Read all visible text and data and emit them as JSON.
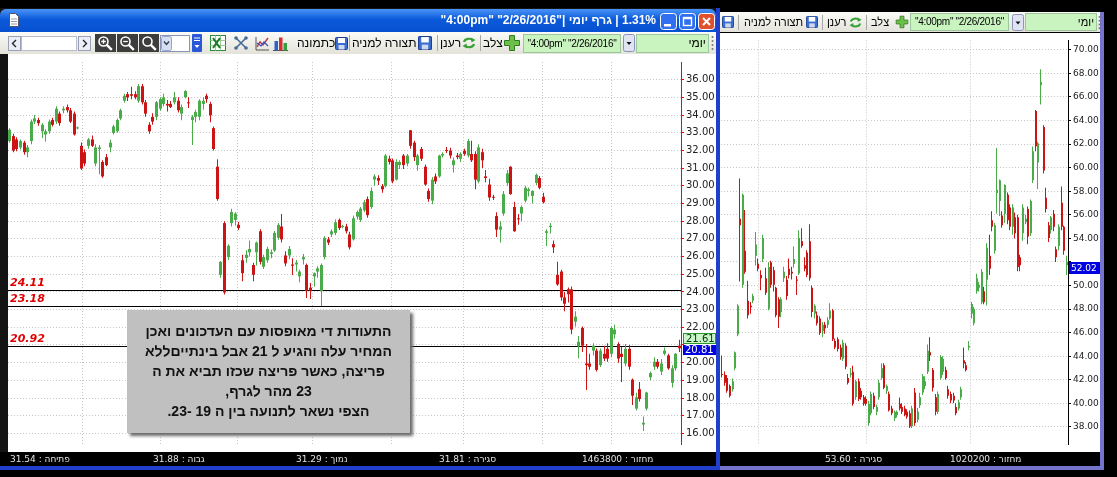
{
  "chart_data": [
    {
      "type": "candlestick",
      "title": "\"4:00pm\" \"2/26/2016\"| גרף יומי | 1.31%",
      "categories": [
        null,
        null,
        null,
        null,
        null,
        null,
        null,
        null,
        null,
        null,
        null,
        null,
        null,
        null,
        null,
        null,
        null,
        null,
        null,
        null,
        null,
        null,
        null,
        null,
        null,
        null,
        null,
        null,
        null,
        null,
        null,
        null,
        null,
        null,
        null,
        null,
        null,
        null,
        null,
        null,
        null,
        null,
        null,
        null,
        null,
        null,
        null,
        null,
        null,
        null,
        null,
        null,
        null,
        null,
        null,
        null,
        null,
        null,
        null,
        null,
        null,
        null,
        null,
        null,
        null,
        null,
        null,
        null,
        null,
        null,
        null,
        null,
        null,
        null,
        null,
        null,
        null,
        null,
        null,
        null,
        null,
        null,
        null,
        null,
        null,
        null,
        null,
        null,
        null,
        null,
        null,
        null,
        null,
        null,
        null,
        null,
        null,
        null,
        null,
        null,
        null,
        null,
        null,
        null,
        null,
        null,
        null,
        null,
        null,
        null,
        null,
        null,
        null,
        null,
        null,
        null,
        null,
        null,
        null,
        null,
        null,
        null,
        null,
        null,
        null,
        null,
        null,
        null,
        null,
        null,
        null,
        null,
        null,
        null,
        null,
        null,
        null,
        null,
        null,
        null,
        null,
        null,
        null,
        null,
        null,
        null,
        null,
        null,
        null,
        null,
        null,
        null,
        null,
        null,
        null,
        null,
        null,
        null,
        null,
        null,
        null,
        null,
        null,
        null,
        null,
        null,
        null,
        null,
        null,
        null,
        null,
        null,
        null,
        null,
        null,
        null,
        null,
        null,
        null,
        null,
        null,
        null,
        null,
        null,
        null,
        null,
        null,
        null
      ],
      "ohlc": [
        [
          32.53,
          33.26,
          32.44,
          33.17
        ],
        [
          32.81,
          32.95,
          31.9,
          31.99
        ],
        [
          32.62,
          32.75,
          31.95,
          32.08
        ],
        [
          32.17,
          32.62,
          32.05,
          32.53
        ],
        [
          32.44,
          32.55,
          31.75,
          31.9
        ],
        [
          31.9,
          32.3,
          31.62,
          32.17
        ],
        [
          32.53,
          33.75,
          32.35,
          33.63
        ],
        [
          33.63,
          34.0,
          33.5,
          33.81
        ],
        [
          33.72,
          33.85,
          33.4,
          33.54
        ],
        [
          33.08,
          33.55,
          32.7,
          33.45
        ],
        [
          32.9,
          33.2,
          32.5,
          33.08
        ],
        [
          33.08,
          33.75,
          32.95,
          33.63
        ],
        [
          33.72,
          33.85,
          33.35,
          33.45
        ],
        [
          33.63,
          34.5,
          33.5,
          34.36
        ],
        [
          34.08,
          34.2,
          33.4,
          33.54
        ],
        [
          34.27,
          34.5,
          34.1,
          34.36
        ],
        [
          34.45,
          34.6,
          34.15,
          34.27
        ],
        [
          34.27,
          34.4,
          33.55,
          33.63
        ],
        [
          34.08,
          34.2,
          32.85,
          32.9
        ],
        [
          33.26,
          33.35,
          33.2,
          33.3
        ],
        [
          32.26,
          32.45,
          30.9,
          30.98
        ],
        [
          31.9,
          32.05,
          31.1,
          31.26
        ],
        [
          32.26,
          32.7,
          32.1,
          32.62
        ],
        [
          32.62,
          32.85,
          32.2,
          32.26
        ],
        [
          31.26,
          32.35,
          31.1,
          32.17
        ],
        [
          32.08,
          32.3,
          30.65,
          32.17
        ],
        [
          31.35,
          31.45,
          30.45,
          30.53
        ],
        [
          31.62,
          31.8,
          31.1,
          31.17
        ],
        [
          32.17,
          32.6,
          31.9,
          32.44
        ],
        [
          32.99,
          33.45,
          32.9,
          33.35
        ],
        [
          33.08,
          33.8,
          33.0,
          33.72
        ],
        [
          33.81,
          34.35,
          33.7,
          34.27
        ],
        [
          34.81,
          35.2,
          34.7,
          35.09
        ],
        [
          35.18,
          35.3,
          34.8,
          35.0
        ],
        [
          35.18,
          35.6,
          34.9,
          35.09
        ],
        [
          35.18,
          35.35,
          34.9,
          35.0
        ],
        [
          34.81,
          35.75,
          34.7,
          35.63
        ],
        [
          35.63,
          35.75,
          34.6,
          34.72
        ],
        [
          34.72,
          34.85,
          33.9,
          34.08
        ],
        [
          33.45,
          33.6,
          32.95,
          33.08
        ],
        [
          33.9,
          34.1,
          33.45,
          33.63
        ],
        [
          33.9,
          34.8,
          33.7,
          34.72
        ],
        [
          34.36,
          35.0,
          34.25,
          34.9
        ],
        [
          34.63,
          35.2,
          34.5,
          35.0
        ],
        [
          34.63,
          34.85,
          34.2,
          34.54
        ],
        [
          34.63,
          34.8,
          34.4,
          34.45
        ],
        [
          34.72,
          35.3,
          34.6,
          35.0
        ],
        [
          34.81,
          35.0,
          34.15,
          34.27
        ],
        [
          34.08,
          34.6,
          33.7,
          34.45
        ],
        [
          35.0,
          35.4,
          34.95,
          35.36
        ],
        [
          34.72,
          35.0,
          34.4,
          34.68
        ],
        [
          33.72,
          34.0,
          32.3,
          33.9
        ],
        [
          33.9,
          34.3,
          33.6,
          34.17
        ],
        [
          33.9,
          34.9,
          33.7,
          34.81
        ],
        [
          34.63,
          35.0,
          34.3,
          34.81
        ],
        [
          35.09,
          35.2,
          34.7,
          34.9
        ],
        [
          34.63,
          34.75,
          33.6,
          33.99
        ],
        [
          33.26,
          33.35,
          32.0,
          32.08
        ],
        [
          31.08,
          31.5,
          29.15,
          29.25
        ],
        [
          24.97,
          25.75,
          24.8,
          25.7
        ],
        [
          27.89,
          28.0,
          23.85,
          23.97
        ],
        [
          25.97,
          26.7,
          25.8,
          26.61
        ],
        [
          27.89,
          28.7,
          27.7,
          28.52
        ],
        [
          28.07,
          28.5,
          27.75,
          28.43
        ],
        [
          27.79,
          27.95,
          27.5,
          27.61
        ],
        [
          25.79,
          26.1,
          24.6,
          25.06
        ],
        [
          25.92,
          26.35,
          25.65,
          26.1
        ],
        [
          26.24,
          26.9,
          26.0,
          26.43
        ],
        [
          25.52,
          25.65,
          24.6,
          24.97
        ],
        [
          26.24,
          26.85,
          25.5,
          26.79
        ],
        [
          27.43,
          27.55,
          25.55,
          25.7
        ],
        [
          25.42,
          26.1,
          25.3,
          25.97
        ],
        [
          25.79,
          26.55,
          25.65,
          26.43
        ],
        [
          26.15,
          26.4,
          25.9,
          26.24
        ],
        [
          26.34,
          27.45,
          26.25,
          27.34
        ],
        [
          27.06,
          27.9,
          26.95,
          27.79
        ],
        [
          27.7,
          28.4,
          26.8,
          26.97
        ],
        [
          26.06,
          26.3,
          25.45,
          25.61
        ],
        [
          26.06,
          26.6,
          25.85,
          26.43
        ],
        [
          25.55,
          25.9,
          24.95,
          25.48
        ],
        [
          25.55,
          25.8,
          25.15,
          25.66
        ],
        [
          24.88,
          25.25,
          24.55,
          25.15
        ],
        [
          25.84,
          26.15,
          25.55,
          25.97
        ],
        [
          25.52,
          25.6,
          23.65,
          24.06
        ],
        [
          24.24,
          24.5,
          23.6,
          24.06
        ],
        [
          24.88,
          25.1,
          24.3,
          25.06
        ],
        [
          25.15,
          25.45,
          24.8,
          25.33
        ],
        [
          24.06,
          25.6,
          23.2,
          25.52
        ],
        [
          25.97,
          27.15,
          25.85,
          27.06
        ],
        [
          26.97,
          27.1,
          26.65,
          26.79
        ],
        [
          27.25,
          27.55,
          27.1,
          27.43
        ],
        [
          27.34,
          28.1,
          27.2,
          27.94
        ],
        [
          28.07,
          28.15,
          27.5,
          27.61
        ],
        [
          27.7,
          27.8,
          27.6,
          27.72
        ],
        [
          27.7,
          27.85,
          27.3,
          27.43
        ],
        [
          27.25,
          27.4,
          26.4,
          26.52
        ],
        [
          26.97,
          28.3,
          26.9,
          28.16
        ],
        [
          28.25,
          28.6,
          28.1,
          28.52
        ],
        [
          28.07,
          28.8,
          27.95,
          28.71
        ],
        [
          28.61,
          29.2,
          28.5,
          29.07
        ],
        [
          29.25,
          29.4,
          28.2,
          28.34
        ],
        [
          28.8,
          29.9,
          28.7,
          29.71
        ],
        [
          30.35,
          30.65,
          30.0,
          30.53
        ],
        [
          30.44,
          30.6,
          30.05,
          30.29
        ],
        [
          29.98,
          30.1,
          29.6,
          29.8
        ],
        [
          29.98,
          31.8,
          29.9,
          31.71
        ],
        [
          31.53,
          31.7,
          31.2,
          31.35
        ],
        [
          31.44,
          31.55,
          30.15,
          30.25
        ],
        [
          30.35,
          31.5,
          30.3,
          31.35
        ],
        [
          31.17,
          31.45,
          30.95,
          31.35
        ],
        [
          31.71,
          31.8,
          30.95,
          31.17
        ],
        [
          31.26,
          31.8,
          31.1,
          31.71
        ],
        [
          33.14,
          33.15,
          32.1,
          32.26
        ],
        [
          32.44,
          32.55,
          31.4,
          31.62
        ],
        [
          31.17,
          31.8,
          30.85,
          31.71
        ],
        [
          32.08,
          32.2,
          31.4,
          31.53
        ],
        [
          31.08,
          31.2,
          30.0,
          30.07
        ],
        [
          29.71,
          29.85,
          29.1,
          29.25
        ],
        [
          29.16,
          30.5,
          28.95,
          30.35
        ],
        [
          30.53,
          30.7,
          30.1,
          30.25
        ],
        [
          30.53,
          31.75,
          30.45,
          31.71
        ],
        [
          31.71,
          31.9,
          31.6,
          31.8
        ],
        [
          32.03,
          32.2,
          31.85,
          31.99
        ],
        [
          31.99,
          32.15,
          31.55,
          31.71
        ],
        [
          31.17,
          31.6,
          30.75,
          31.44
        ],
        [
          31.71,
          31.85,
          31.5,
          31.62
        ],
        [
          31.53,
          31.9,
          31.35,
          31.8
        ],
        [
          31.99,
          32.1,
          31.7,
          31.8
        ],
        [
          31.71,
          32.65,
          31.6,
          32.53
        ],
        [
          31.8,
          32.55,
          31.35,
          31.44
        ],
        [
          31.8,
          31.95,
          29.8,
          30.35
        ],
        [
          30.25,
          32.35,
          30.15,
          32.17
        ],
        [
          31.9,
          32.1,
          31.0,
          31.44
        ],
        [
          30.53,
          30.9,
          30.2,
          30.44
        ],
        [
          30.07,
          30.4,
          29.15,
          29.34
        ],
        [
          29.38,
          29.5,
          29.2,
          29.34
        ],
        [
          28.29,
          28.5,
          27.1,
          27.52
        ],
        [
          27.52,
          28.0,
          26.8,
          27.7
        ],
        [
          28.43,
          29.7,
          28.3,
          29.53
        ],
        [
          30.16,
          30.9,
          30.0,
          30.7
        ],
        [
          31.08,
          31.1,
          29.5,
          29.53
        ],
        [
          28.8,
          29.1,
          27.4,
          27.43
        ],
        [
          28.16,
          28.4,
          27.8,
          28.12
        ],
        [
          28.43,
          28.9,
          28.0,
          28.8
        ],
        [
          29.16,
          30.0,
          29.05,
          29.89
        ],
        [
          29.71,
          29.9,
          29.4,
          29.8
        ],
        [
          29.43,
          29.75,
          29.0,
          29.71
        ],
        [
          30.16,
          30.7,
          30.05,
          30.62
        ],
        [
          30.44,
          30.55,
          29.8,
          29.89
        ],
        [
          29.38,
          29.6,
          29.0,
          29.07
        ],
        [
          27.34,
          27.55,
          26.6,
          27.43
        ],
        [
          27.67,
          27.9,
          27.3,
          27.74
        ],
        [
          26.7,
          26.9,
          26.2,
          26.52
        ],
        [
          24.97,
          25.7,
          24.35,
          24.42
        ],
        [
          25.15,
          25.25,
          23.5,
          23.69
        ],
        [
          23.69,
          24.0,
          22.9,
          23.33
        ],
        [
          24.15,
          24.25,
          23.4,
          23.87
        ],
        [
          24.15,
          24.3,
          21.6,
          21.87
        ],
        [
          22.32,
          22.9,
          22.05,
          22.6
        ],
        [
          20.92,
          21.5,
          20.25,
          21.18
        ],
        [
          21.96,
          22.05,
          20.6,
          20.96
        ],
        [
          19.95,
          21.05,
          18.45,
          19.86
        ],
        [
          19.95,
          20.5,
          19.6,
          19.77
        ],
        [
          20.68,
          21.1,
          20.4,
          20.96
        ],
        [
          20.68,
          20.8,
          19.5,
          19.59
        ],
        [
          19.86,
          20.8,
          19.75,
          20.68
        ],
        [
          20.5,
          20.95,
          20.1,
          20.23
        ],
        [
          20.78,
          21.1,
          20.05,
          20.23
        ],
        [
          20.5,
          22.05,
          20.3,
          21.96
        ],
        [
          21.6,
          22.15,
          21.35,
          21.87
        ],
        [
          21.05,
          21.15,
          20.0,
          20.23
        ],
        [
          20.5,
          20.9,
          18.9,
          20.32
        ],
        [
          19.95,
          21.05,
          19.8,
          20.78
        ],
        [
          20.78,
          21.0,
          19.6,
          19.77
        ],
        [
          19.04,
          19.1,
          17.6,
          18.13
        ],
        [
          17.4,
          18.3,
          17.3,
          18.04
        ],
        [
          18.5,
          18.9,
          17.8,
          17.95
        ],
        [
          16.5,
          16.95,
          16.13,
          16.6
        ],
        [
          17.4,
          18.35,
          17.3,
          18.31
        ],
        [
          19.17,
          19.5,
          19.0,
          19.41
        ],
        [
          19.77,
          20.3,
          19.6,
          20.05
        ],
        [
          20.05,
          20.2,
          19.65,
          19.77
        ],
        [
          19.5,
          20.2,
          19.3,
          19.95
        ],
        [
          20.5,
          20.85,
          20.4,
          20.68
        ],
        [
          20.41,
          20.5,
          19.6,
          19.68
        ],
        [
          18.86,
          19.85,
          18.6,
          19.68
        ],
        [
          19.68,
          20.55,
          19.55,
          20.5
        ],
        [
          20.96,
          21.3,
          20.6,
          20.81
        ]
      ],
      "ylim": [
        15.4,
        37
      ],
      "yticks": [
        {
          "value": 16,
          "label": "16.00"
        },
        {
          "value": 17,
          "label": "17.00"
        },
        {
          "value": 18,
          "label": "18.00"
        },
        {
          "value": 19,
          "label": "19.00"
        },
        {
          "value": 20,
          "label": "20.00"
        },
        {
          "value": 21,
          "label": null
        },
        {
          "value": 22,
          "label": "22.00"
        },
        {
          "value": 23,
          "label": "23.00"
        },
        {
          "value": 24,
          "label": "24.00"
        },
        {
          "value": 25,
          "label": "25.00"
        },
        {
          "value": 26,
          "label": "26.00"
        },
        {
          "value": 27,
          "label": "27.00"
        },
        {
          "value": 28,
          "label": "28.00"
        },
        {
          "value": 29,
          "label": "29.00"
        },
        {
          "value": 30,
          "label": "30.00"
        },
        {
          "value": 31,
          "label": "31.00"
        },
        {
          "value": 32,
          "label": "32.00"
        },
        {
          "value": 33,
          "label": "33.00"
        },
        {
          "value": 34,
          "label": "34.00"
        },
        {
          "value": 35,
          "label": "35.00"
        },
        {
          "value": 36,
          "label": "36.00"
        }
      ],
      "grid": true,
      "tick_labels": "y",
      "ref_lines": [
        {
          "axis": "y",
          "value": 24.11,
          "label": "24.11",
          "color": "#000000"
        },
        {
          "axis": "y",
          "value": 23.18,
          "label": "23.18",
          "color": "#000000"
        },
        {
          "axis": "y",
          "value": 20.92,
          "label": "20.92",
          "color": "#000000"
        }
      ],
      "annotations": [
        "יומי",
        "\"4:00pm\" \"2/26/2016\"",
        "צלב",
        "רענן",
        "תצורה למניה",
        "כתמונה",
        "התעודות די מאופסות עם העדכונים ואכן\nהמחיר עלה והגיע ל 21 אבל בינתייםללא\nפריצה, כאשר פריצה שכזו תביא את ה\n23 מהר לגרף,\nהצפי נשאר לתנועה בין ה 19 -23.",
        "21.61",
        "20.81",
        "31.54 : פתיחה",
        "31.88 : גבוה",
        "31.29 : נמוך",
        "31.81 : סגירה",
        "1463800 : מחזור"
      ]
    },
    {
      "type": "candlestick",
      "categories": [
        null,
        null,
        null,
        null,
        null,
        null,
        null,
        null,
        null,
        null,
        null,
        null,
        null,
        null,
        null,
        null,
        null,
        null,
        null,
        null,
        null,
        null,
        null,
        null,
        null,
        null,
        null,
        null,
        null,
        null,
        null,
        null,
        null,
        null,
        null,
        null,
        null,
        null,
        null,
        null,
        null,
        null,
        null,
        null,
        null,
        null,
        null,
        null,
        null,
        null,
        null,
        null,
        null,
        null,
        null,
        null,
        null,
        null,
        null,
        null,
        null,
        null,
        null,
        null,
        null,
        null,
        null,
        null,
        null,
        null,
        null,
        null,
        null,
        null,
        null,
        null,
        null,
        null,
        null,
        null,
        null,
        null,
        null,
        null,
        null,
        null,
        null,
        null,
        null,
        null,
        null,
        null,
        null,
        null,
        null,
        null,
        null,
        null,
        null,
        null,
        null,
        null,
        null,
        null,
        null,
        null,
        null,
        null,
        null,
        null,
        null,
        null,
        null,
        null,
        null,
        null,
        null,
        null,
        null,
        null,
        null,
        null,
        null,
        null,
        null,
        null,
        null,
        null,
        null,
        null,
        null,
        null,
        null,
        null,
        null
      ],
      "ohlc": [
        [
          42.5,
          44.06,
          42.2,
          42.42
        ],
        [
          42.42,
          42.7,
          41.5,
          41.74
        ],
        [
          42.15,
          42.4,
          40.9,
          41.06
        ],
        [
          41.47,
          41.6,
          40.5,
          40.65
        ],
        [
          41.2,
          42.1,
          41.0,
          41.88
        ],
        [
          42.97,
          44.4,
          42.8,
          44.34
        ],
        [
          45.84,
          48.4,
          45.7,
          48.29
        ],
        [
          55.67,
          59.08,
          50.34,
          55.12
        ],
        [
          50.07,
          57.8,
          49.8,
          57.71
        ],
        [
          52.94,
          56.4,
          51.0,
          51.16
        ],
        [
          48.7,
          50.4,
          47.2,
          47.48
        ],
        [
          48.29,
          48.6,
          47.6,
          48.16
        ],
        [
          48.7,
          49.3,
          48.5,
          49.11
        ],
        [
          52.53,
          54.55,
          51.7,
          53.48
        ],
        [
          51.84,
          52.3,
          51.2,
          51.43
        ],
        [
          50.89,
          51.3,
          49.6,
          50.62
        ],
        [
          52.25,
          54.3,
          52.0,
          54.03
        ],
        [
          50.62,
          51.5,
          49.2,
          49.39
        ],
        [
          48.02,
          52.0,
          47.9,
          51.57
        ],
        [
          51.98,
          52.1,
          49.8,
          50.07
        ],
        [
          51.3,
          51.6,
          49.5,
          50.07
        ],
        [
          49.8,
          49.9,
          47.3,
          47.48
        ],
        [
          48.84,
          49.0,
          46.4,
          47.34
        ],
        [
          47.75,
          49.0,
          47.3,
          48.84
        ],
        [
          50.62,
          51.6,
          50.3,
          51.16
        ],
        [
          50.48,
          50.8,
          48.8,
          49.11
        ],
        [
          51.43,
          52.3,
          50.6,
          50.89
        ],
        [
          51.16,
          51.6,
          50.5,
          51.02
        ],
        [
          51.84,
          53.3,
          51.5,
          52.25
        ],
        [
          50.5,
          50.8,
          49.2,
          50.4
        ],
        [
          51.02,
          54.7,
          50.9,
          54.03
        ],
        [
          53.75,
          54.85,
          53.2,
          53.35
        ],
        [
          51.71,
          52.4,
          51.2,
          51.43
        ],
        [
          52.8,
          53.0,
          50.7,
          50.89
        ],
        [
          53.75,
          55.2,
          50.4,
          50.62
        ],
        [
          49.8,
          50.0,
          47.3,
          47.75
        ],
        [
          47.61,
          48.4,
          47.2,
          48.29
        ],
        [
          47.48,
          47.8,
          46.6,
          46.79
        ],
        [
          47.2,
          47.4,
          45.8,
          45.97
        ],
        [
          46.11,
          46.9,
          45.6,
          46.66
        ],
        [
          46.66,
          46.9,
          45.9,
          46.38
        ],
        [
          46.66,
          47.3,
          46.4,
          47.06
        ],
        [
          47.2,
          48.5,
          47.1,
          47.88
        ],
        [
          47.88,
          48.0,
          45.3,
          45.43
        ],
        [
          45.29,
          45.5,
          44.6,
          44.74
        ],
        [
          45.43,
          45.6,
          44.4,
          44.61
        ],
        [
          44.74,
          45.0,
          43.7,
          43.93
        ],
        [
          43.79,
          45.4,
          43.6,
          45.15
        ],
        [
          44.88,
          45.1,
          42.9,
          43.11
        ],
        [
          42.15,
          42.5,
          41.6,
          41.74
        ],
        [
          42.42,
          43.0,
          42.2,
          42.56
        ],
        [
          42.69,
          43.2,
          39.8,
          39.97
        ],
        [
          40.51,
          42.0,
          40.3,
          41.88
        ],
        [
          41.88,
          42.1,
          40.2,
          40.38
        ],
        [
          41.06,
          41.3,
          40.3,
          40.51
        ],
        [
          40.51,
          40.7,
          39.8,
          39.97
        ],
        [
          40.38,
          40.6,
          39.8,
          39.97
        ],
        [
          38.33,
          40.2,
          38.1,
          39.97
        ],
        [
          39.15,
          41.0,
          39.0,
          40.79
        ],
        [
          40.65,
          40.9,
          39.5,
          39.69
        ],
        [
          39.28,
          39.9,
          39.0,
          39.69
        ],
        [
          40.51,
          42.0,
          40.3,
          41.74
        ],
        [
          42.15,
          43.4,
          42.0,
          42.97
        ],
        [
          43.24,
          43.4,
          41.2,
          41.33
        ],
        [
          41.06,
          41.6,
          40.8,
          41.47
        ],
        [
          40.79,
          41.0,
          39.3,
          39.42
        ],
        [
          39.56,
          39.8,
          39.0,
          39.15
        ],
        [
          38.74,
          39.4,
          38.5,
          39.28
        ],
        [
          39.01,
          39.4,
          38.8,
          39.28
        ],
        [
          39.97,
          40.5,
          39.4,
          39.56
        ],
        [
          39.69,
          40.0,
          39.1,
          39.28
        ],
        [
          39.56,
          39.8,
          38.9,
          39.01
        ],
        [
          39.28,
          39.5,
          38.7,
          38.87
        ],
        [
          39.15,
          39.4,
          37.9,
          38.05
        ],
        [
          38.05,
          39.8,
          37.9,
          39.56
        ],
        [
          40.92,
          41.3,
          38.1,
          38.33
        ],
        [
          38.6,
          39.6,
          38.4,
          39.28
        ],
        [
          39.83,
          40.9,
          39.6,
          40.51
        ],
        [
          40.92,
          42.5,
          40.7,
          42.29
        ],
        [
          41.47,
          42.3,
          41.2,
          41.88
        ],
        [
          42.69,
          45.0,
          42.5,
          44.47
        ],
        [
          44.34,
          45.6,
          43.6,
          44.06
        ],
        [
          42.83,
          43.0,
          41.0,
          41.33
        ],
        [
          40.51,
          40.8,
          39.0,
          39.28
        ],
        [
          39.28,
          41.0,
          39.1,
          40.79
        ],
        [
          42.15,
          44.1,
          42.0,
          43.93
        ],
        [
          42.69,
          44.0,
          42.4,
          43.79
        ],
        [
          42.83,
          43.1,
          42.0,
          42.15
        ],
        [
          41.2,
          41.5,
          40.4,
          40.65
        ],
        [
          40.79,
          41.0,
          40.0,
          40.24
        ],
        [
          40.65,
          40.9,
          40.0,
          40.24
        ],
        [
          39.69,
          40.0,
          39.0,
          39.15
        ],
        [
          39.56,
          40.3,
          39.4,
          40.1
        ],
        [
          40.51,
          41.4,
          40.3,
          41.2
        ],
        [
          43.65,
          44.74,
          42.97,
          43.38
        ],
        [
          43.24,
          43.5,
          42.7,
          42.83
        ],
        [
          44.74,
          45.3,
          44.5,
          44.88
        ],
        [
          47.61,
          48.6,
          47.2,
          48.43
        ],
        [
          46.79,
          48.2,
          46.6,
          48.02
        ],
        [
          49.52,
          51.0,
          49.3,
          50.62
        ],
        [
          49.8,
          50.3,
          49.5,
          50.07
        ],
        [
          48.57,
          51.4,
          48.4,
          51.16
        ],
        [
          49.52,
          49.9,
          48.4,
          48.57
        ],
        [
          50.48,
          53.6,
          48.3,
          53.21
        ],
        [
          52.53,
          54.3,
          50.9,
          51.43
        ],
        [
          55.53,
          56.3,
          54.6,
          54.98
        ],
        [
          52.94,
          55.3,
          52.7,
          55.12
        ],
        [
          57.85,
          61.67,
          56.08,
          58.12
        ],
        [
          57.17,
          59.0,
          55.9,
          58.94
        ],
        [
          55.94,
          56.3,
          54.9,
          55.12
        ],
        [
          56.08,
          58.6,
          55.3,
          58.53
        ],
        [
          57.71,
          57.9,
          55.2,
          55.53
        ],
        [
          56.62,
          56.9,
          54.7,
          54.98
        ],
        [
          54.98,
          56.9,
          54.3,
          56.62
        ],
        [
          55.8,
          56.2,
          54.0,
          54.44
        ],
        [
          55.8,
          56.0,
          51.2,
          51.57
        ],
        [
          52.39,
          52.6,
          51.2,
          51.71
        ],
        [
          54.44,
          56.9,
          53.8,
          56.62
        ],
        [
          55.39,
          56.0,
          55.2,
          55.67
        ],
        [
          56.49,
          56.7,
          53.5,
          54.16
        ],
        [
          54.44,
          57.3,
          54.2,
          57.17
        ],
        [
          58.94,
          61.8,
          58.7,
          61.4
        ],
        [
          64.81,
          64.9,
          61.4,
          61.81
        ],
        [
          60.44,
          62.2,
          58.2,
          62.08
        ],
        [
          67.0,
          68.36,
          65.36,
          67.27
        ],
        [
          63.45,
          63.6,
          59.5,
          59.76
        ],
        [
          57.44,
          58.3,
          56.2,
          56.49
        ],
        [
          55.12,
          55.4,
          53.7,
          54.03
        ],
        [
          54.71,
          55.9,
          54.4,
          55.8
        ],
        [
          56.08,
          56.4,
          54.6,
          54.98
        ],
        [
          53.07,
          53.3,
          52.0,
          52.39
        ],
        [
          53.35,
          55.2,
          53.0,
          54.98
        ],
        [
          57.03,
          58.4,
          54.7,
          54.98
        ],
        [
          54.98,
          55.1,
          52.6,
          52.94
        ],
        [
          51.71,
          52.53,
          50.89,
          52.02
        ]
      ],
      "ylim": [
        36.5,
        70.8
      ],
      "yticks": [
        {
          "value": 38,
          "label": "38.00"
        },
        {
          "value": 40,
          "label": "40.00"
        },
        {
          "value": 42,
          "label": "42.00"
        },
        {
          "value": 44,
          "label": "44.00"
        },
        {
          "value": 46,
          "label": "46.00"
        },
        {
          "value": 48,
          "label": "48.00"
        },
        {
          "value": 50,
          "label": "50.00"
        },
        {
          "value": 52,
          "label": null
        },
        {
          "value": 54,
          "label": "54.00"
        },
        {
          "value": 56,
          "label": "56.00"
        },
        {
          "value": 58,
          "label": "58.00"
        },
        {
          "value": 60,
          "label": "60.00"
        },
        {
          "value": 62,
          "label": "62.00"
        },
        {
          "value": 64,
          "label": "64.00"
        },
        {
          "value": 66,
          "label": "66.00"
        },
        {
          "value": 68,
          "label": "68.00"
        },
        {
          "value": 70,
          "label": "70.00"
        }
      ],
      "grid": true,
      "tick_labels": "y",
      "annotations": [
        "יומי",
        "\"4:00pm\" \"2/26/2016\"",
        "צלב",
        "רענן",
        "תצורה למניה",
        "52.02",
        "53.60 : סגירה",
        "1020200 : מחזור"
      ]
    }
  ]
}
